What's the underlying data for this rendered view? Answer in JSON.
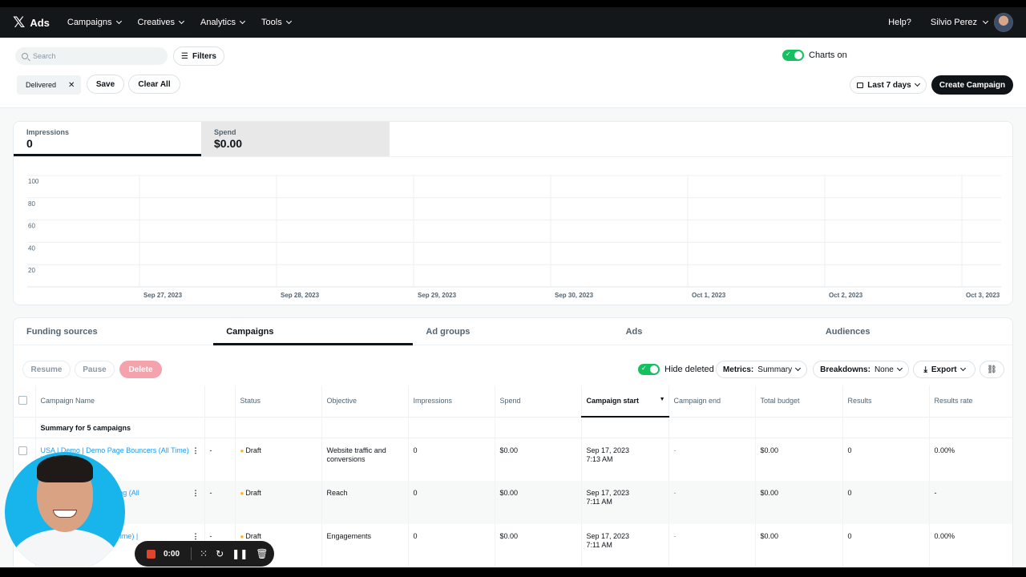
{
  "nav": {
    "logo_text": "Ads",
    "items": [
      "Campaigns",
      "Creatives",
      "Analytics",
      "Tools"
    ],
    "help": "Help?",
    "user_name": "Silvio Perez"
  },
  "toolbar": {
    "search_placeholder": "Search",
    "filters_label": "Filters",
    "chip_label": "Delivered",
    "save_label": "Save",
    "clear_label": "Clear All",
    "charts_label": "Charts on",
    "date_label": "Last 7 days",
    "create_label": "Create Campaign"
  },
  "metric_tabs": [
    {
      "label": "Impressions",
      "value": "0"
    },
    {
      "label": "Spend",
      "value": "$0.00"
    }
  ],
  "chart_data": {
    "type": "line",
    "y_ticks": [
      "100",
      "80",
      "60",
      "40",
      "20"
    ],
    "ylim": [
      0,
      100
    ],
    "x": [
      "Sep 27, 2023",
      "Sep 28, 2023",
      "Sep 29, 2023",
      "Sep 30, 2023",
      "Oct 1, 2023",
      "Oct 2, 2023",
      "Oct 3, 2023"
    ],
    "series": [],
    "grid": true
  },
  "entity_tabs": [
    "Funding sources",
    "Campaigns",
    "Ad groups",
    "Ads",
    "Audiences"
  ],
  "actions": {
    "resume": "Resume",
    "pause": "Pause",
    "delete": "Delete",
    "hide_deleted": "Hide deleted",
    "metrics_prefix": "Metrics:",
    "metrics_value": "Summary",
    "breakdowns_prefix": "Breakdowns:",
    "breakdowns_value": "None",
    "export": "Export"
  },
  "table": {
    "columns": [
      "Campaign Name",
      "Status",
      "Objective",
      "Impressions",
      "Spend",
      "Campaign start",
      "Campaign end",
      "Total budget",
      "Results",
      "Results rate"
    ],
    "summary": "Summary for 5 campaigns",
    "rows": [
      {
        "name": "USA | Demo | Demo Page Bouncers (All Time) | Conversions",
        "dash": "-",
        "status": "Draft",
        "objective": "Website traffic and conversions",
        "impressions": "0",
        "spend": "$0.00",
        "start": "Sep 17, 2023",
        "start_time": "7:13 AM",
        "end": "-",
        "budget": "$0.00",
        "results": "0",
        "rate": "0.00%"
      },
      {
        "name": "USA | Demo | Remarketing (All",
        "dash": "-",
        "status": "Draft",
        "objective": "Reach",
        "impressions": "0",
        "spend": "$0.00",
        "start": "Sep 17, 2023",
        "start_time": "7:11 AM",
        "end": "-",
        "budget": "$0.00",
        "results": "0",
        "rate": "-"
      },
      {
        "name": "USA | Remarketing (All Time) |",
        "dash": "-",
        "status": "Draft",
        "objective": "Engagements",
        "impressions": "0",
        "spend": "$0.00",
        "start": "Sep 17, 2023",
        "start_time": "7:11 AM",
        "end": "-",
        "budget": "$0.00",
        "results": "0",
        "rate": "0.00%"
      }
    ]
  },
  "recorder": {
    "time": "0:00"
  },
  "colors": {
    "accent_green": "#17bf63",
    "link_blue": "#1d9bf0",
    "draft_dot": "#ffad1f",
    "camera_bg": "#18b4ec"
  }
}
